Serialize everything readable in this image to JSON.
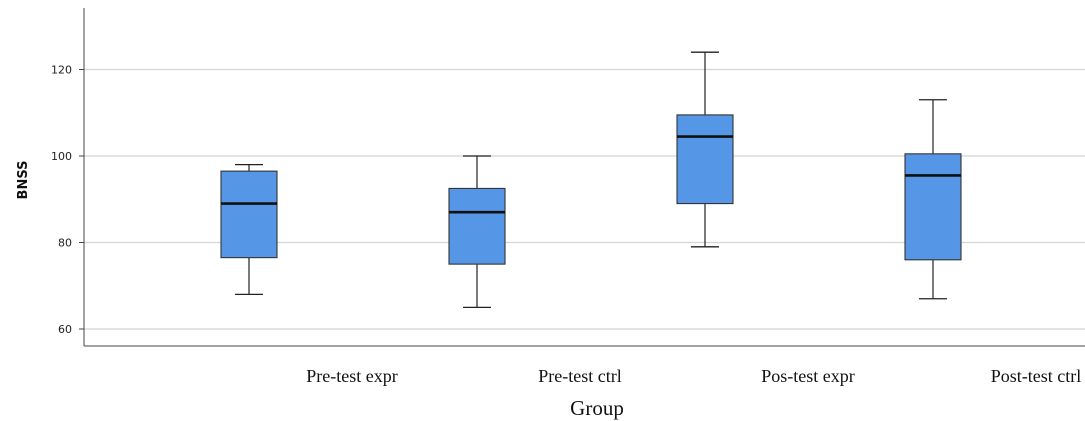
{
  "chart_data": {
    "type": "boxplot",
    "xlabel": "Group",
    "ylabel": "BNSS",
    "ylim": [
      56,
      135
    ],
    "yticks": [
      60,
      80,
      100,
      120
    ],
    "grid": true,
    "box_color": "#5596e6",
    "categories": [
      "Pre-test expr",
      "Pre-test ctrl",
      "Pos-test expr",
      "Post-test ctrl"
    ],
    "boxes": [
      {
        "min": 68,
        "q1": 76.5,
        "median": 89,
        "q3": 96.5,
        "max": 98
      },
      {
        "min": 65,
        "q1": 75,
        "median": 87,
        "q3": 92.5,
        "max": 100
      },
      {
        "min": 79,
        "q1": 89,
        "median": 104.5,
        "q3": 109.5,
        "max": 124
      },
      {
        "min": 67,
        "q1": 76,
        "median": 95.5,
        "q3": 100.5,
        "max": 113
      }
    ]
  }
}
